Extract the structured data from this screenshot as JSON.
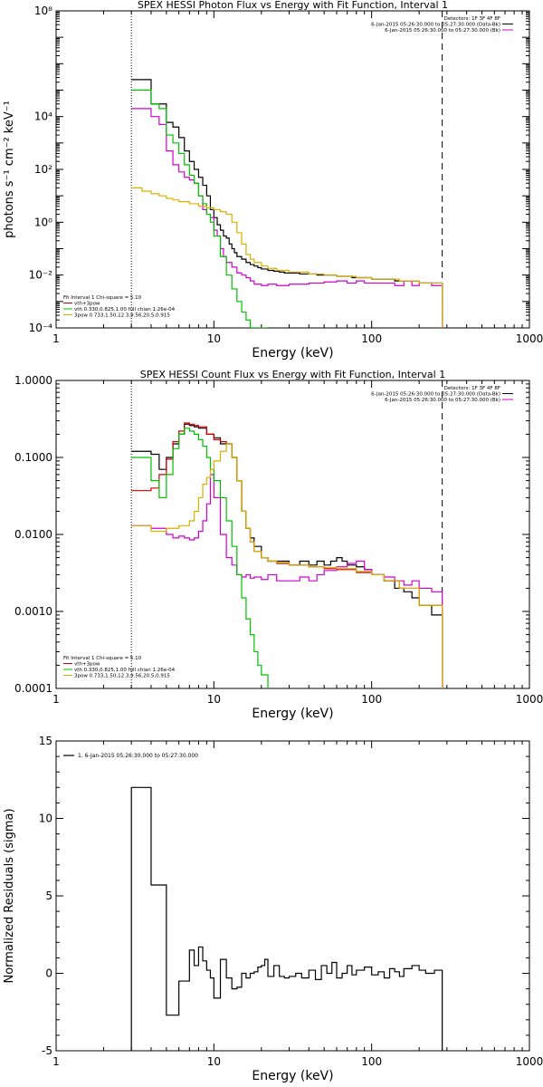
{
  "chart_data": [
    {
      "type": "line",
      "title": "SPEX HESSI Photon Flux vs Energy with Fit Function, Interval 1",
      "xlabel": "Energy (keV)",
      "ylabel": "photons s⁻¹ cm⁻² keV⁻¹",
      "xscale": "log",
      "yscale": "log",
      "xlim": [
        1,
        1000
      ],
      "ylim": [
        0.0001,
        100000000
      ],
      "xtick_values": [
        1,
        10,
        100,
        1000
      ],
      "xtick_labels": [
        "1",
        "10",
        "100",
        "1000"
      ],
      "ytick_values": [
        0.0001,
        0.01,
        1,
        100,
        10000,
        100000000
      ],
      "ytick_labels": [
        "10⁻⁴",
        "10⁻²",
        "10⁰",
        "10²",
        "10⁴",
        "10⁸"
      ],
      "vlines": [
        {
          "x": 3,
          "style": "dotted",
          "color": "#000000"
        },
        {
          "x": 280,
          "style": "dashed",
          "color": "#000000"
        }
      ],
      "legend_topright": [
        "Detectors: 1F 3F 4F 8F",
        "6-Jan-2015 05:26:30.000 to 05:27:30.000 (Data-Bk)",
        "6-Jan-2015 05:26:30.000 to 05:27:30.000 (Bk)"
      ],
      "legend_topright_colors": [
        "",
        "#000000",
        "#d000d0"
      ],
      "legend_bottomleft": [
        "Fit Interval 1   Chi-square = 5.10",
        "vth+3pow",
        "vth 0.330,0.825,1.00  full chian 1.26e-04",
        "3pow 0.733,1.50,12.3,9.56,20.5,0.915"
      ],
      "legend_bottomleft_colors": [
        "",
        "#d00000",
        "#00c000",
        "#d8b000"
      ],
      "series": [
        {
          "color": "#000000",
          "x": [
            3,
            3.5,
            4,
            4.5,
            5,
            5.5,
            6,
            6.5,
            7,
            7.5,
            8,
            8.5,
            9,
            9.5,
            10,
            10.5,
            11,
            11.5,
            12,
            12.5,
            13,
            13.5,
            14,
            15,
            16,
            17,
            18,
            19,
            20,
            22,
            24,
            26,
            28,
            30,
            35,
            40,
            45,
            50,
            55,
            60,
            65,
            70,
            75,
            80,
            90,
            100,
            110,
            120,
            140,
            160,
            180,
            200,
            220,
            250,
            280
          ],
          "y": [
            250000,
            250000,
            30000,
            30000,
            6000,
            4000,
            1600,
            500,
            200,
            100,
            50,
            25,
            10,
            3,
            1.5,
            0.8,
            0.5,
            0.3,
            0.25,
            0.15,
            0.1,
            0.07,
            0.05,
            0.04,
            0.03,
            0.025,
            0.022,
            0.019,
            0.017,
            0.015,
            0.014,
            0.013,
            0.012,
            0.012,
            0.011,
            0.011,
            0.01,
            0.01,
            0.01,
            0.009,
            0.009,
            0.009,
            0.008,
            0.008,
            0.008,
            0.007,
            0.007,
            0.007,
            0.006,
            0.006,
            0.006,
            0.005,
            0.005,
            0.005,
            0.0001
          ]
        },
        {
          "color": "#d000d0",
          "x": [
            3,
            4,
            4.5,
            5,
            5.5,
            6,
            6.5,
            7,
            7.5,
            8,
            8.5,
            9,
            9.5,
            10,
            10.5,
            11,
            11.5,
            12,
            13,
            14,
            15,
            16,
            17,
            18,
            20,
            22,
            25,
            30,
            40,
            50,
            60,
            70,
            80,
            90,
            100,
            120,
            140,
            160,
            180,
            200,
            240,
            280
          ],
          "y": [
            20000,
            10000,
            5000,
            500,
            150,
            80,
            50,
            40,
            30,
            10,
            3,
            2,
            1.5,
            0.5,
            0.3,
            0.1,
            0.05,
            0.03,
            0.02,
            0.012,
            0.01,
            0.008,
            0.006,
            0.0045,
            0.004,
            0.0045,
            0.004,
            0.0045,
            0.005,
            0.0055,
            0.006,
            0.005,
            0.006,
            0.005,
            0.005,
            0.005,
            0.004,
            0.006,
            0.004,
            0.005,
            0.004,
            0.0001
          ]
        },
        {
          "color": "#00c000",
          "x": [
            3,
            4,
            4.5,
            5,
            5.5,
            6,
            6.5,
            7,
            7.5,
            8,
            8.5,
            9,
            9.5,
            10,
            11,
            12,
            13,
            14,
            15,
            16,
            17,
            18,
            19,
            20,
            22
          ],
          "y": [
            100000,
            30000,
            20000,
            2000,
            1000,
            400,
            150,
            60,
            30,
            10,
            5,
            2,
            1,
            0.3,
            0.05,
            0.01,
            0.003,
            0.001,
            0.0004,
            0.0002,
            0.0001,
            0.0001,
            0.0001,
            0.0001,
            0.0001
          ]
        },
        {
          "color": "#d8b000",
          "x": [
            3,
            3.5,
            4,
            4.5,
            5,
            5.5,
            6,
            7,
            8,
            9,
            10,
            11,
            12,
            13,
            14,
            15,
            16,
            17,
            18,
            20,
            22,
            25,
            30,
            40,
            50,
            60,
            80,
            100,
            150,
            200,
            280
          ],
          "y": [
            20,
            15,
            12,
            10,
            8,
            7,
            6,
            5,
            4,
            3.5,
            3,
            2.5,
            2,
            1,
            0.4,
            0.15,
            0.06,
            0.04,
            0.03,
            0.022,
            0.018,
            0.015,
            0.013,
            0.011,
            0.01,
            0.009,
            0.008,
            0.007,
            0.006,
            0.005,
            0.0001
          ]
        }
      ]
    },
    {
      "type": "line",
      "title": "SPEX HESSI Count Flux vs Energy with Fit Function, Interval 1",
      "xlabel": "Energy (keV)",
      "ylabel": "",
      "xscale": "log",
      "yscale": "log",
      "xlim": [
        1,
        1000
      ],
      "ylim": [
        0.0001,
        1.0
      ],
      "xtick_values": [
        1,
        10,
        100,
        1000
      ],
      "xtick_labels": [
        "1",
        "10",
        "100",
        "1000"
      ],
      "ytick_values": [
        0.0001,
        0.001,
        0.01,
        0.1,
        1.0
      ],
      "ytick_labels": [
        "0.0001",
        "0.0010",
        "0.0100",
        "0.1000",
        "1.0000"
      ],
      "vlines": [
        {
          "x": 3,
          "style": "dotted",
          "color": "#000000"
        },
        {
          "x": 280,
          "style": "dashed",
          "color": "#000000"
        }
      ],
      "legend_topright": [
        "Detectors: 1F 3F 4F 8F",
        "6-Jan-2015 05:26:30.000 to 05:27:30.000 (Data-Bk)",
        "6-Jan-2015 05:26:30.000 to 05:27:30.000 (Bk)"
      ],
      "legend_topright_colors": [
        "",
        "#000000",
        "#d000d0"
      ],
      "legend_bottomleft": [
        "Fit Interval 1   Chi-square = 5.10",
        "vth+3pow",
        "vth 0.330,0.825,1.00  full chian 1.26e-04",
        "3pow 0.733,1.50,12.3,9.56,20.5,0.915"
      ],
      "legend_bottomleft_colors": [
        "",
        "#d00000",
        "#00c000",
        "#d8b000"
      ],
      "series": [
        {
          "color": "#000000",
          "x": [
            3,
            4,
            4.5,
            5,
            5.5,
            6,
            6.5,
            7,
            7.5,
            8,
            9,
            10,
            11,
            12,
            13,
            14,
            15,
            16,
            17,
            18,
            20,
            22,
            25,
            30,
            35,
            40,
            45,
            50,
            55,
            60,
            65,
            70,
            80,
            90,
            100,
            120,
            140,
            160,
            180,
            200,
            240,
            280
          ],
          "y": [
            0.12,
            0.11,
            0.07,
            0.1,
            0.15,
            0.2,
            0.27,
            0.26,
            0.25,
            0.24,
            0.2,
            0.18,
            0.15,
            0.15,
            0.1,
            0.05,
            0.02,
            0.012,
            0.009,
            0.007,
            0.005,
            0.0045,
            0.0045,
            0.004,
            0.0045,
            0.004,
            0.0045,
            0.004,
            0.0045,
            0.005,
            0.0045,
            0.004,
            0.0038,
            0.0035,
            0.003,
            0.0025,
            0.002,
            0.0018,
            0.0015,
            0.0012,
            0.0009,
            0.0001
          ]
        },
        {
          "color": "#d00000",
          "x": [
            3,
            4,
            4.5,
            5,
            5.5,
            6,
            6.5,
            7,
            7.5,
            8,
            9,
            10,
            11,
            12,
            13,
            14,
            15,
            16,
            17,
            18,
            20,
            22,
            25,
            30,
            40,
            50,
            60,
            80,
            100,
            120,
            150,
            200,
            280
          ],
          "y": [
            0.037,
            0.04,
            0.06,
            0.095,
            0.16,
            0.22,
            0.28,
            0.27,
            0.26,
            0.25,
            0.2,
            0.17,
            0.16,
            0.15,
            0.1,
            0.05,
            0.02,
            0.012,
            0.008,
            0.006,
            0.005,
            0.0045,
            0.0042,
            0.004,
            0.0038,
            0.0036,
            0.0035,
            0.0032,
            0.003,
            0.0025,
            0.002,
            0.0012,
            0.0001
          ]
        },
        {
          "color": "#d000d0",
          "x": [
            3,
            4,
            5,
            5.5,
            6,
            6.5,
            7,
            7.5,
            8,
            8.5,
            9,
            9.5,
            10,
            11,
            12,
            13,
            14,
            15,
            16,
            17,
            18,
            20,
            22,
            25,
            30,
            35,
            40,
            45,
            50,
            60,
            70,
            80,
            90,
            100,
            120,
            140,
            160,
            180,
            200,
            240,
            280
          ],
          "y": [
            0.013,
            0.012,
            0.01,
            0.009,
            0.0095,
            0.009,
            0.0085,
            0.009,
            0.011,
            0.015,
            0.025,
            0.06,
            0.03,
            0.01,
            0.005,
            0.004,
            0.003,
            0.0028,
            0.003,
            0.0027,
            0.0028,
            0.0026,
            0.003,
            0.0025,
            0.0025,
            0.0028,
            0.0025,
            0.003,
            0.0034,
            0.0038,
            0.0042,
            0.0045,
            0.0035,
            0.003,
            0.0028,
            0.0025,
            0.0022,
            0.0025,
            0.002,
            0.0018,
            0.0001
          ]
        },
        {
          "color": "#00c000",
          "x": [
            3,
            4,
            4.5,
            5,
            5.5,
            6,
            6.5,
            7,
            7.5,
            8,
            8.5,
            9,
            9.5,
            10,
            11,
            12,
            13,
            14,
            15,
            16,
            17,
            18,
            19,
            20,
            22
          ],
          "y": [
            0.1,
            0.05,
            0.03,
            0.06,
            0.13,
            0.2,
            0.24,
            0.22,
            0.2,
            0.17,
            0.14,
            0.1,
            0.07,
            0.05,
            0.03,
            0.015,
            0.007,
            0.003,
            0.0015,
            0.0008,
            0.0005,
            0.0003,
            0.0002,
            0.00015,
            0.0001
          ]
        },
        {
          "color": "#d8b000",
          "x": [
            3,
            4,
            5,
            6,
            7,
            7.5,
            8,
            8.5,
            9,
            9.5,
            10,
            11,
            12,
            13,
            14,
            15,
            16,
            17,
            18,
            20,
            22,
            25,
            30,
            40,
            50,
            60,
            80,
            100,
            120,
            150,
            200,
            280
          ],
          "y": [
            0.013,
            0.011,
            0.012,
            0.013,
            0.015,
            0.02,
            0.03,
            0.045,
            0.055,
            0.07,
            0.09,
            0.12,
            0.15,
            0.1,
            0.05,
            0.02,
            0.012,
            0.008,
            0.006,
            0.005,
            0.0045,
            0.0043,
            0.004,
            0.0038,
            0.0037,
            0.0036,
            0.0033,
            0.003,
            0.0025,
            0.002,
            0.0012,
            0.0001
          ]
        }
      ]
    },
    {
      "type": "line",
      "title": "",
      "xlabel": "Energy (keV)",
      "ylabel": "Normalized Residuals (sigma)",
      "xscale": "log",
      "yscale": "linear",
      "xlim": [
        1,
        1000
      ],
      "ylim": [
        -5,
        15
      ],
      "xtick_values": [
        1,
        10,
        100,
        1000
      ],
      "xtick_labels": [
        "1",
        "10",
        "100",
        "1000"
      ],
      "ytick_values": [
        -5,
        0,
        5,
        10,
        15
      ],
      "ytick_labels": [
        "-5",
        "0",
        "5",
        "10",
        "15"
      ],
      "vlines": [],
      "legend_topleft": [
        "1. 6-Jan-2015 05:26:30.000 to 05:27:30.000"
      ],
      "legend_topleft_colors": [
        "#000000"
      ],
      "series": [
        {
          "color": "#000000",
          "step_edges": [
            3,
            4,
            5,
            6,
            7,
            7.5,
            8,
            8.5,
            9,
            9.5,
            10,
            11,
            12,
            13,
            14,
            15,
            16,
            17,
            18,
            19,
            20,
            21,
            22,
            24,
            26,
            28,
            30,
            33,
            36,
            40,
            44,
            48,
            52,
            56,
            60,
            65,
            70,
            75,
            80,
            90,
            100,
            110,
            120,
            130,
            140,
            150,
            160,
            180,
            200,
            220,
            250,
            280
          ],
          "values": [
            12,
            5.7,
            -2.7,
            -0.5,
            1.5,
            0.5,
            1.7,
            0.8,
            0.2,
            -0.3,
            -1.6,
            0.9,
            -0.3,
            -1,
            -0.9,
            0,
            -0.3,
            0,
            0.1,
            0.4,
            0.5,
            0.9,
            -0.2,
            0.5,
            -0.2,
            -0.3,
            -0.2,
            0,
            -0.3,
            0.2,
            -0.4,
            0.5,
            0,
            0.7,
            -0.3,
            0,
            0.5,
            -0.1,
            0.2,
            0.4,
            -0.1,
            0.1,
            -0.3,
            0.3,
            0.1,
            -0.2,
            0.3,
            0.5,
            0.2,
            0,
            0.2
          ]
        }
      ]
    }
  ]
}
